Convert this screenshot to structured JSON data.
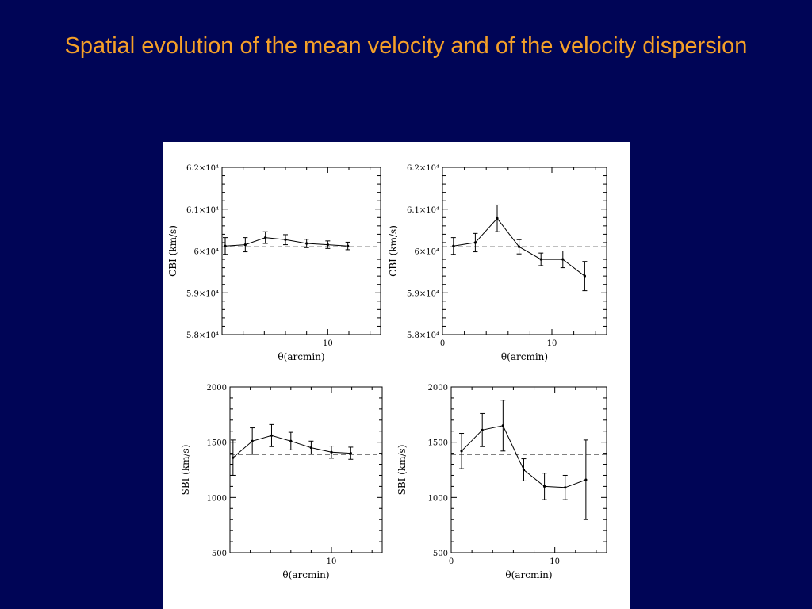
{
  "slide": {
    "title": "Spatial evolution of the mean velocity and of the velocity dispersion"
  },
  "colors": {
    "background": "#000556",
    "title": "#f5a028",
    "panel": "#ffffff",
    "ink": "#000000"
  },
  "chart_data": [
    {
      "type": "line",
      "xlabel": "θ(arcmin)",
      "ylabel": "CBI (km/s)",
      "xlim": [
        0,
        15
      ],
      "ylim": [
        58000,
        62000
      ],
      "xticks": [
        10
      ],
      "yticks": [
        58000,
        59000,
        60000,
        61000,
        62000
      ],
      "ytick_labels": [
        "5.8×10⁴",
        "5.9×10⁴",
        "6×10⁴",
        "6.1×10⁴",
        "6.2×10⁴"
      ],
      "reference_line": 60100,
      "x": [
        0.3,
        2.2,
        4.1,
        6.0,
        8.0,
        10.0,
        11.9
      ],
      "y": [
        60120,
        60150,
        60320,
        60270,
        60180,
        60150,
        60120
      ],
      "yerr": [
        200,
        170,
        140,
        120,
        100,
        90,
        90
      ]
    },
    {
      "type": "line",
      "xlabel": "θ(arcmin)",
      "ylabel": "CBI (km/s)",
      "xlim": [
        0,
        15
      ],
      "ylim": [
        58000,
        62000
      ],
      "xticks": [
        0,
        10
      ],
      "yticks": [
        58000,
        59000,
        60000,
        61000,
        62000
      ],
      "ytick_labels": [
        "5.8×10⁴",
        "5.9×10⁴",
        "6×10⁴",
        "6.1×10⁴",
        "6.2×10⁴"
      ],
      "reference_line": 60100,
      "x": [
        1,
        3,
        5,
        7,
        9,
        11,
        13
      ],
      "y": [
        60120,
        60200,
        60780,
        60100,
        59800,
        59800,
        59400
      ],
      "yerr": [
        200,
        220,
        320,
        170,
        150,
        200,
        350
      ]
    },
    {
      "type": "line",
      "xlabel": "θ(arcmin)",
      "ylabel": "SBI (km/s)",
      "xlim": [
        0,
        15
      ],
      "ylim": [
        500,
        2000
      ],
      "xticks": [
        10
      ],
      "yticks": [
        500,
        1000,
        1500,
        2000
      ],
      "ytick_labels": [
        "500",
        "1000",
        "1500",
        "2000"
      ],
      "reference_line": 1390,
      "x": [
        0.3,
        2.2,
        4.1,
        6.0,
        8.0,
        10.0,
        11.9
      ],
      "y": [
        1360,
        1510,
        1560,
        1510,
        1450,
        1410,
        1400
      ],
      "yerr": [
        160,
        120,
        100,
        80,
        60,
        55,
        55
      ]
    },
    {
      "type": "line",
      "xlabel": "θ(arcmin)",
      "ylabel": "SBI (km/s)",
      "xlim": [
        0,
        15
      ],
      "ylim": [
        500,
        2000
      ],
      "xticks": [
        0,
        10
      ],
      "yticks": [
        500,
        1000,
        1500,
        2000
      ],
      "ytick_labels": [
        "500",
        "1000",
        "1500",
        "2000"
      ],
      "reference_line": 1390,
      "x": [
        1,
        3,
        5,
        7,
        9,
        11,
        13
      ],
      "y": [
        1420,
        1610,
        1650,
        1250,
        1100,
        1090,
        1160
      ],
      "yerr": [
        160,
        150,
        230,
        100,
        120,
        110,
        360
      ]
    }
  ]
}
